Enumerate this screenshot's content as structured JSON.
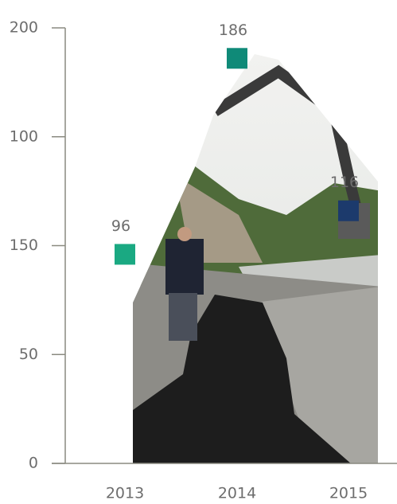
{
  "chart_data": {
    "type": "scatter",
    "y_axis_labels": [
      "200",
      "100",
      "150",
      "50",
      "0"
    ],
    "categories": [
      "2013",
      "2014",
      "2015"
    ],
    "values": [
      96,
      186,
      116
    ],
    "colors": [
      "#1aa982",
      "#0f8a78",
      "#1c3a6c"
    ],
    "ylim": [
      0,
      200
    ]
  }
}
